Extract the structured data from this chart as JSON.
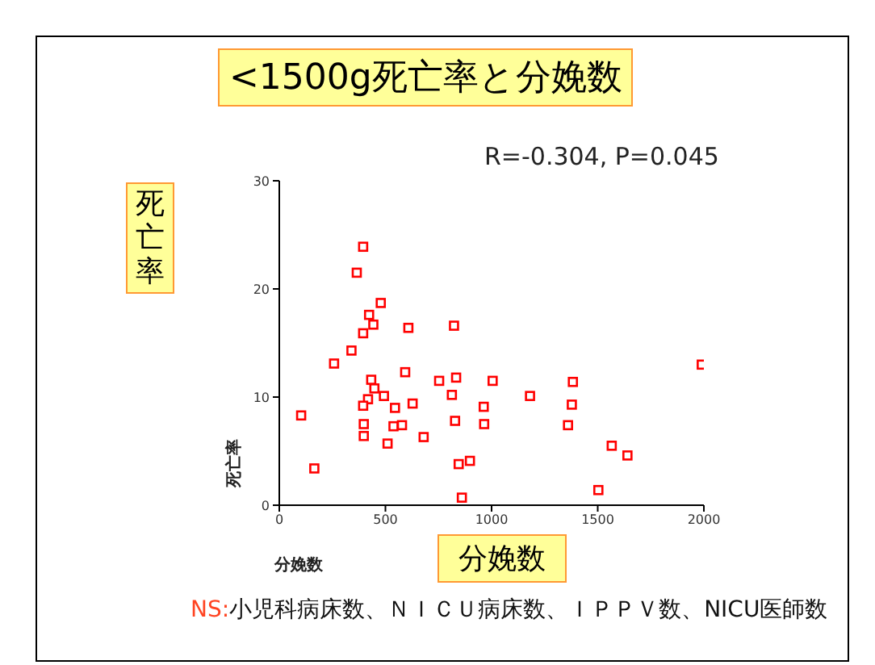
{
  "chart_data": {
    "type": "scatter",
    "title": "<1500g死亡率と分娩数",
    "xlabel": "分娩数",
    "ylabel": "死亡率",
    "annotations": [
      "R=-0.304, P=0.045",
      "死亡率",
      "分娩数",
      "NS:",
      "小児科病床数、ＮＩＣＵ病床数、ＩＰＰＶ数、NICU医師数"
    ],
    "series": [
      {
        "color": "#ff0000",
        "x": [
          395,
          365,
          478,
          423,
          443,
          395,
          608,
          823,
          340,
          258,
          593,
          433,
          448,
          418,
          395,
          493,
          545,
          628,
          753,
          833,
          813,
          1005,
          963,
          965,
          828,
          398,
          398,
          538,
          578,
          680,
          510,
          103,
          165,
          845,
          898,
          860,
          1181,
          1383,
          1378,
          1360,
          1990,
          1566,
          1640,
          1503
        ],
        "values": [
          23.9,
          21.5,
          18.7,
          17.6,
          16.7,
          15.9,
          16.4,
          16.6,
          14.3,
          13.1,
          12.3,
          11.6,
          10.8,
          9.8,
          9.2,
          10.1,
          9.0,
          9.4,
          11.5,
          11.8,
          10.2,
          11.5,
          9.1,
          7.5,
          7.8,
          7.5,
          6.4,
          7.3,
          7.4,
          6.3,
          5.7,
          8.3,
          3.4,
          3.8,
          4.1,
          0.7,
          10.1,
          11.4,
          9.3,
          7.4,
          13.0,
          5.5,
          4.6,
          1.4
        ]
      }
    ],
    "xlim": [
      0,
      2000
    ],
    "xticks": [
      0,
      500,
      1000,
      1500,
      2000
    ],
    "ylim": [
      0,
      30
    ],
    "yticks": [
      0,
      10,
      20,
      30
    ],
    "grid": false,
    "legend": false,
    "marker": "square"
  }
}
